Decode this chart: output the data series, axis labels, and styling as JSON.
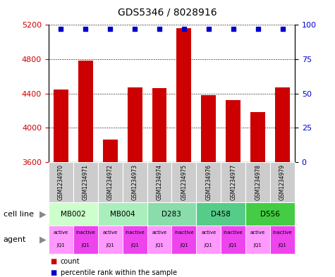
{
  "title": "GDS5346 / 8028916",
  "samples": [
    "GSM1234970",
    "GSM1234971",
    "GSM1234972",
    "GSM1234973",
    "GSM1234974",
    "GSM1234975",
    "GSM1234976",
    "GSM1234977",
    "GSM1234978",
    "GSM1234979"
  ],
  "counts": [
    4450,
    4780,
    3860,
    4470,
    4460,
    5160,
    4380,
    4320,
    4180,
    4470
  ],
  "ylim": [
    3600,
    5200
  ],
  "yticks": [
    3600,
    4000,
    4400,
    4800,
    5200
  ],
  "yticks_right": [
    0,
    25,
    50,
    75,
    100
  ],
  "bar_color": "#cc0000",
  "dot_color": "#0000cc",
  "cell_lines": [
    {
      "name": "MB002",
      "span": [
        0,
        2
      ],
      "color": "#ccffcc"
    },
    {
      "name": "MB004",
      "span": [
        2,
        4
      ],
      "color": "#aaeebb"
    },
    {
      "name": "D283",
      "span": [
        4,
        6
      ],
      "color": "#88ddaa"
    },
    {
      "name": "D458",
      "span": [
        6,
        8
      ],
      "color": "#55cc88"
    },
    {
      "name": "D556",
      "span": [
        8,
        10
      ],
      "color": "#44cc44"
    }
  ],
  "agents": [
    {
      "label": "active\nJQ1",
      "color": "#ff99ff"
    },
    {
      "label": "inactive\nJQ1",
      "color": "#ee44ee"
    },
    {
      "label": "active\nJQ1",
      "color": "#ff99ff"
    },
    {
      "label": "inactive\nJQ1",
      "color": "#ee44ee"
    },
    {
      "label": "active\nJQ1",
      "color": "#ff99ff"
    },
    {
      "label": "inactive\nJQ1",
      "color": "#ee44ee"
    },
    {
      "label": "active\nJQ1",
      "color": "#ff99ff"
    },
    {
      "label": "inactive\nJQ1",
      "color": "#ee44ee"
    },
    {
      "label": "active\nJQ1",
      "color": "#ff99ff"
    },
    {
      "label": "inactive\nJQ1",
      "color": "#ee44ee"
    }
  ],
  "legend_count_color": "#cc0000",
  "legend_dot_color": "#0000cc",
  "gsm_bg_color": "#cccccc",
  "fig_width": 4.75,
  "fig_height": 3.93,
  "dpi": 100
}
